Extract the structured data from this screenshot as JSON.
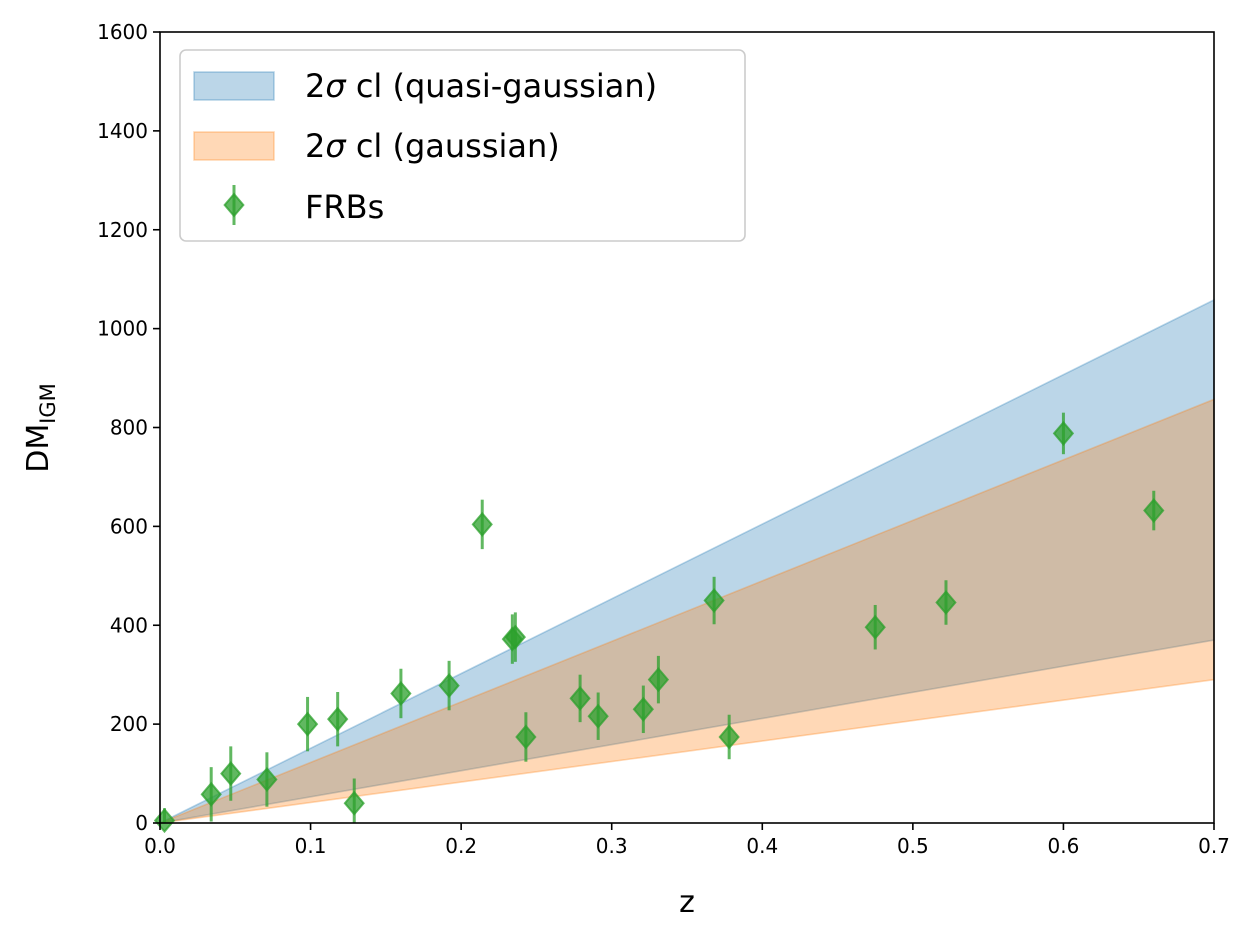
{
  "chart_data": {
    "type": "scatter",
    "xlabel": "z",
    "ylabel": {
      "main": "DM",
      "sub": "IGM"
    },
    "xlim": [
      0,
      0.7
    ],
    "ylim": [
      0,
      1600
    ],
    "x_ticks": [
      "0.0",
      "0.1",
      "0.2",
      "0.3",
      "0.4",
      "0.5",
      "0.6",
      "0.7"
    ],
    "y_ticks": [
      "0",
      "200",
      "400",
      "600",
      "800",
      "1000",
      "1200",
      "1400",
      "1600"
    ],
    "grid": false,
    "legend_position": "top-left",
    "legend": [
      {
        "label_prefix": "2",
        "label_symbol": "σ",
        "label_suffix": " cl (quasi-gaussian)",
        "kind": "band",
        "color": "#1f77b4"
      },
      {
        "label_prefix": "2",
        "label_symbol": "σ",
        "label_suffix": " cl (gaussian)",
        "kind": "band",
        "color": "#ff7f0e"
      },
      {
        "label": "FRBs",
        "kind": "marker",
        "color": "#2ca02c"
      }
    ],
    "bands": [
      {
        "name": "2σ cl (quasi-gaussian)",
        "color": "#1f77b4",
        "x": [
          0,
          0.7
        ],
        "lower": [
          0,
          370
        ],
        "upper": [
          0,
          1058
        ]
      },
      {
        "name": "2σ cl (gaussian)",
        "color": "#ff7f0e",
        "x": [
          0,
          0.7
        ],
        "lower": [
          0,
          290
        ],
        "upper": [
          0,
          857
        ]
      }
    ],
    "series": [
      {
        "name": "FRBs",
        "marker": "diamond",
        "color": "#2ca02c",
        "points": [
          {
            "x": 0.003,
            "y": 5,
            "err": 25
          },
          {
            "x": 0.034,
            "y": 58,
            "err": 55
          },
          {
            "x": 0.047,
            "y": 100,
            "err": 55
          },
          {
            "x": 0.071,
            "y": 88,
            "err": 55
          },
          {
            "x": 0.098,
            "y": 200,
            "err": 55
          },
          {
            "x": 0.118,
            "y": 210,
            "err": 55
          },
          {
            "x": 0.129,
            "y": 40,
            "err": 50
          },
          {
            "x": 0.16,
            "y": 262,
            "err": 50
          },
          {
            "x": 0.192,
            "y": 278,
            "err": 50
          },
          {
            "x": 0.214,
            "y": 604,
            "err": 50
          },
          {
            "x": 0.234,
            "y": 372,
            "err": 50
          },
          {
            "x": 0.236,
            "y": 376,
            "err": 50
          },
          {
            "x": 0.243,
            "y": 174,
            "err": 50
          },
          {
            "x": 0.279,
            "y": 252,
            "err": 48
          },
          {
            "x": 0.291,
            "y": 216,
            "err": 48
          },
          {
            "x": 0.321,
            "y": 230,
            "err": 48
          },
          {
            "x": 0.331,
            "y": 290,
            "err": 48
          },
          {
            "x": 0.368,
            "y": 450,
            "err": 48
          },
          {
            "x": 0.378,
            "y": 174,
            "err": 45
          },
          {
            "x": 0.475,
            "y": 396,
            "err": 45
          },
          {
            "x": 0.522,
            "y": 446,
            "err": 45
          },
          {
            "x": 0.6,
            "y": 788,
            "err": 42
          },
          {
            "x": 0.66,
            "y": 632,
            "err": 40
          }
        ]
      }
    ]
  }
}
